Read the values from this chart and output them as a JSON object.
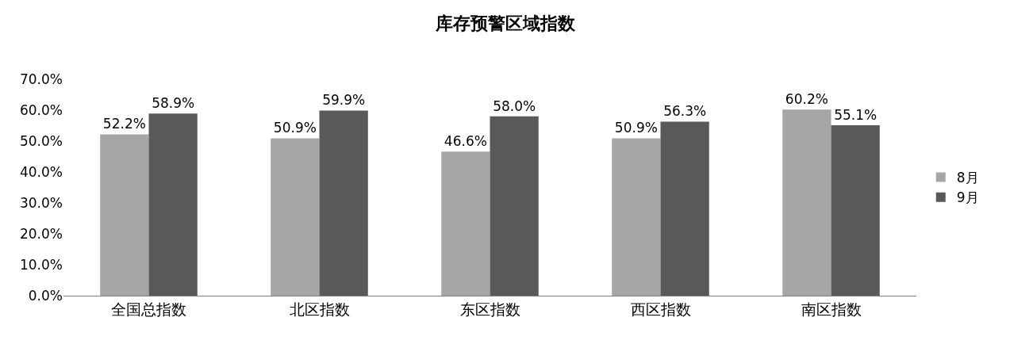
{
  "chart_data": {
    "type": "bar",
    "title": "库存预警区域指数",
    "categories": [
      "全国总指数",
      "北区指数",
      "东区指数",
      "西区指数",
      "南区指数"
    ],
    "series": [
      {
        "name": "8月",
        "color": "#a6a6a6",
        "values": [
          52.2,
          50.9,
          46.6,
          50.9,
          60.2
        ],
        "value_labels": [
          "52.2%",
          "50.9%",
          "46.6%",
          "50.9%",
          "60.2%"
        ]
      },
      {
        "name": "9月",
        "color": "#595959",
        "values": [
          58.9,
          59.9,
          58.0,
          56.3,
          55.1
        ],
        "value_labels": [
          "58.9%",
          "59.9%",
          "58.0%",
          "56.3%",
          "55.1%"
        ]
      }
    ],
    "ylim": [
      0,
      70
    ],
    "yticks": [
      {
        "value": 0,
        "label": "0.0%"
      },
      {
        "value": 10,
        "label": "10.0%"
      },
      {
        "value": 20,
        "label": "20.0%"
      },
      {
        "value": 30,
        "label": "30.0%"
      },
      {
        "value": 40,
        "label": "40.0%"
      },
      {
        "value": 50,
        "label": "50.0%"
      },
      {
        "value": 60,
        "label": "60.0%"
      },
      {
        "value": 70,
        "label": "70.0%"
      }
    ],
    "grid": false,
    "legend": "right"
  }
}
